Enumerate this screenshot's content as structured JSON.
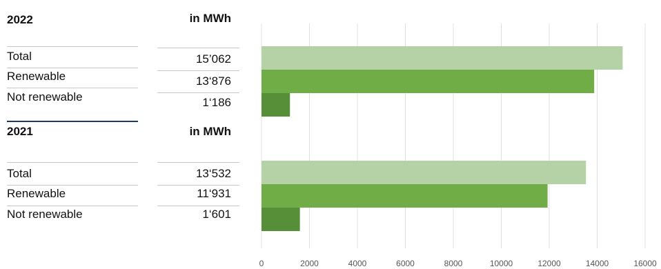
{
  "colors": {
    "total": "#b5d1a6",
    "renewable": "#70ad47",
    "not_renewable": "#568f38",
    "grid": "#e0e0e0",
    "header_rule": "#1f3864"
  },
  "table": [
    {
      "year": "2022",
      "unit": "in MWh",
      "rows": [
        {
          "label": "Total",
          "value": "15’062"
        },
        {
          "label": "Renewable",
          "value": "13‘876"
        },
        {
          "label": "Not renewable",
          "value": "1‘186"
        }
      ]
    },
    {
      "year": "2021",
      "unit": "in MWh",
      "rows": [
        {
          "label": "Total",
          "value": "13‘532"
        },
        {
          "label": "Renewable",
          "value": "11‘931"
        },
        {
          "label": "Not renewable",
          "value": "1‘601"
        }
      ]
    }
  ],
  "chart_data": {
    "type": "bar",
    "orientation": "horizontal",
    "title": "",
    "xlabel": "",
    "ylabel": "",
    "xlim": [
      0,
      16000
    ],
    "x_ticks": [
      0,
      2000,
      4000,
      6000,
      8000,
      10000,
      12000,
      14000,
      16000
    ],
    "grid": true,
    "groups": [
      {
        "year": "2022",
        "bars": [
          {
            "category": "Total",
            "value": 15062
          },
          {
            "category": "Renewable",
            "value": 13876
          },
          {
            "category": "Not renewable",
            "value": 1186
          }
        ]
      },
      {
        "year": "2021",
        "bars": [
          {
            "category": "Total",
            "value": 13532
          },
          {
            "category": "Renewable",
            "value": 11931
          },
          {
            "category": "Not renewable",
            "value": 1601
          }
        ]
      }
    ]
  }
}
